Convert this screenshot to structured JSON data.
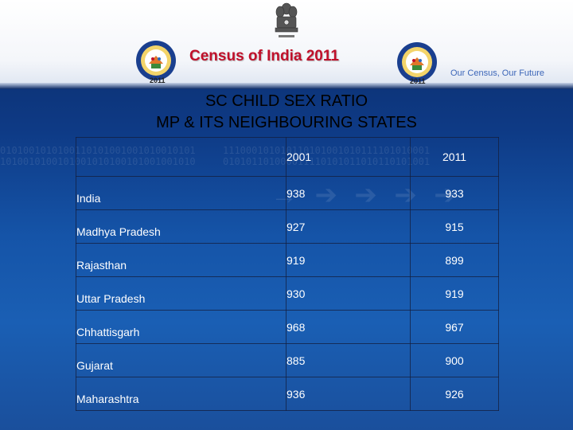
{
  "header": {
    "census_title": "Census of India  2011",
    "tagline": "Our Census,  Our Future",
    "logo_year_left": "2011",
    "logo_year_right": "2011"
  },
  "slide": {
    "title_line1": "SC CHILD SEX RATIO",
    "title_line2": "MP & ITS NEIGHBOURING STATES"
  },
  "table": {
    "columns": [
      "",
      "2001",
      "2011"
    ],
    "rows": [
      {
        "state": "India",
        "y2001": "938",
        "y2011": "933"
      },
      {
        "state": "Madhya Pradesh",
        "y2001": "927",
        "y2011": "915"
      },
      {
        "state": "Rajasthan",
        "y2001": "919",
        "y2011": "899"
      },
      {
        "state": "Uttar Pradesh",
        "y2001": "930",
        "y2011": "919"
      },
      {
        "state": "Chhattisgarh",
        "y2001": "968",
        "y2011": "967"
      },
      {
        "state": "Gujarat",
        "y2001": "885",
        "y2011": "900"
      },
      {
        "state": "Maharashtra",
        "y2001": "936",
        "y2011": "926"
      }
    ]
  },
  "colors": {
    "title_red": "#c0102a",
    "tagline_blue": "#3c66b8",
    "background_blue": "#1554a8"
  },
  "icons": {
    "emblem": "national-emblem-icon",
    "logo": "census-logo-icon"
  }
}
